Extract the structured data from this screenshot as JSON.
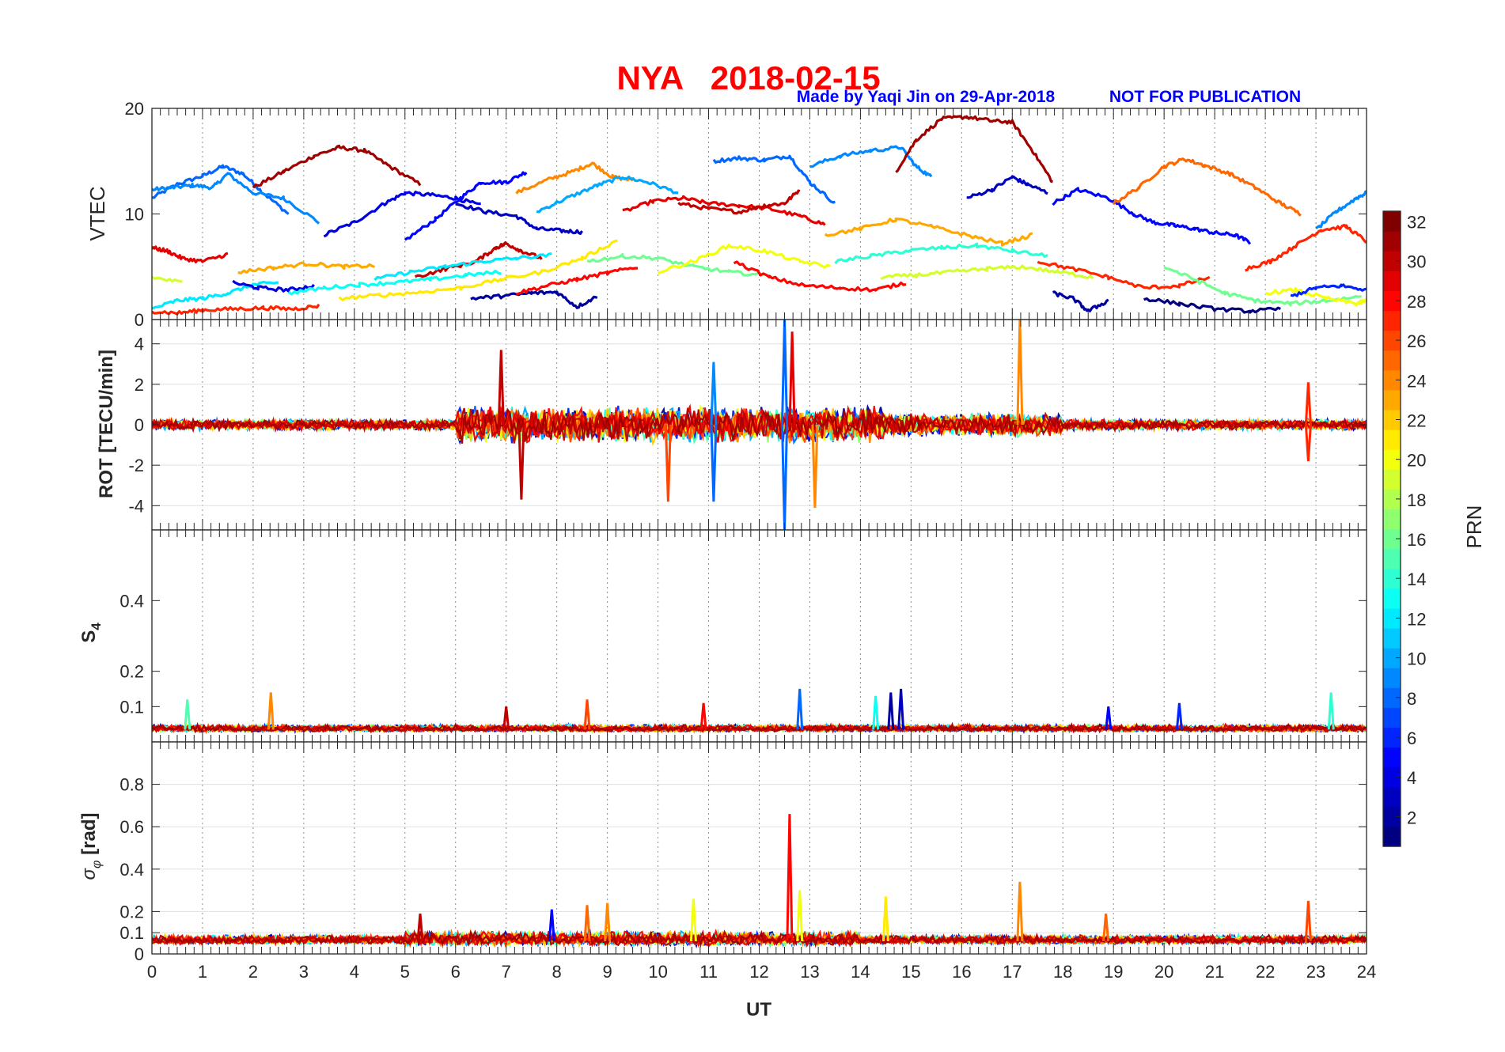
{
  "header": {
    "title": "NYA   2018-02-15",
    "credit": "Made by Yaqi Jin on 29-Apr-2018",
    "notice": "NOT FOR PUBLICATION",
    "title_color": "#ff0000",
    "credit_color": "#0000ff"
  },
  "colorbar": {
    "label": "PRN",
    "min": 1,
    "max": 32,
    "ticks": [
      "2",
      "4",
      "6",
      "8",
      "10",
      "12",
      "14",
      "16",
      "18",
      "20",
      "22",
      "24",
      "26",
      "28",
      "30",
      "32"
    ],
    "colormap": "jet"
  },
  "chart_data": [
    {
      "type": "line",
      "ylabel": "VTEC",
      "ylim": [
        0,
        20
      ],
      "yticks": [
        "0",
        "10",
        "20"
      ],
      "xlim": [
        0,
        24
      ],
      "grid": "vertical",
      "note_series": "approximate VTEC arcs per PRN (UT hours, TECU)",
      "series": [
        {
          "prn": 8,
          "x": [
            0,
            0.5,
            1,
            1.4,
            1.8,
            2.2,
            2.7
          ],
          "y": [
            11.5,
            12.8,
            13.6,
            14.5,
            13.8,
            12.0,
            10.0
          ]
        },
        {
          "prn": 9,
          "x": [
            0,
            0.4,
            0.8,
            1.2,
            1.5,
            2.0,
            2.6,
            3.3
          ],
          "y": [
            12.3,
            12.5,
            12.7,
            12.5,
            13.8,
            12.0,
            11.5,
            9.2
          ]
        },
        {
          "prn": 31,
          "x": [
            2.0,
            2.6,
            3.2,
            3.7,
            4.2,
            4.7,
            5.3
          ],
          "y": [
            12.5,
            14.0,
            15.5,
            16.3,
            16.0,
            14.5,
            12.8
          ]
        },
        {
          "prn": 4,
          "x": [
            3.4,
            4.0,
            4.6,
            5.0,
            5.5,
            6.0,
            6.5
          ],
          "y": [
            8.0,
            9.2,
            11.0,
            12.0,
            11.8,
            11.5,
            10.8
          ]
        },
        {
          "prn": 5,
          "x": [
            5.0,
            5.6,
            6.1,
            6.5,
            7.0,
            7.4
          ],
          "y": [
            7.5,
            9.5,
            11.5,
            13.0,
            13.0,
            14.0
          ]
        },
        {
          "prn": 3,
          "x": [
            6.0,
            6.6,
            7.2,
            7.6,
            8.1,
            8.5
          ],
          "y": [
            11.0,
            10.2,
            9.8,
            8.6,
            8.4,
            8.3
          ]
        },
        {
          "prn": 24,
          "x": [
            7.2,
            7.8,
            8.3,
            8.7,
            9.1,
            9.5
          ],
          "y": [
            12.0,
            13.2,
            14.0,
            14.8,
            13.5,
            13.2
          ]
        },
        {
          "prn": 10,
          "x": [
            7.6,
            8.2,
            8.8,
            9.3,
            9.8,
            10.4
          ],
          "y": [
            10.2,
            11.5,
            12.7,
            13.5,
            13.0,
            12.0
          ]
        },
        {
          "prn": 29,
          "x": [
            9.3,
            9.9,
            10.5,
            11.0,
            11.6,
            12.2,
            12.8,
            13.3
          ],
          "y": [
            10.2,
            11.2,
            11.5,
            11.0,
            10.8,
            10.5,
            9.8,
            9.0
          ]
        },
        {
          "prn": 30,
          "x": [
            10.4,
            11.0,
            11.6,
            12.1,
            12.5,
            12.8
          ],
          "y": [
            11.0,
            10.5,
            10.2,
            10.8,
            11.0,
            12.3
          ]
        },
        {
          "prn": 8,
          "x": [
            11.1,
            11.6,
            12.1,
            12.6,
            13.0,
            13.5
          ],
          "y": [
            15.0,
            15.3,
            15.1,
            15.5,
            13.0,
            11.0
          ]
        },
        {
          "prn": 9,
          "x": [
            13.0,
            13.6,
            14.2,
            14.8,
            15.1,
            15.4
          ],
          "y": [
            14.5,
            15.5,
            16.0,
            16.3,
            14.5,
            13.5
          ]
        },
        {
          "prn": 31,
          "x": [
            14.7,
            15.1,
            15.6,
            16.1,
            16.6,
            17.0,
            17.4,
            17.8
          ],
          "y": [
            14.0,
            17.0,
            19.0,
            19.2,
            18.8,
            18.7,
            16.0,
            13.0
          ]
        },
        {
          "prn": 3,
          "x": [
            16.1,
            16.6,
            17.0,
            17.3,
            17.7
          ],
          "y": [
            11.5,
            12.3,
            13.5,
            12.8,
            12.0
          ]
        },
        {
          "prn": 5,
          "x": [
            17.8,
            18.3,
            18.9,
            19.4,
            19.8,
            20.2,
            20.6,
            21.0,
            21.4,
            21.7
          ],
          "y": [
            11.0,
            12.3,
            11.5,
            10.0,
            9.2,
            8.9,
            8.6,
            8.2,
            8.0,
            7.3
          ]
        },
        {
          "prn": 25,
          "x": [
            19.0,
            19.5,
            20.0,
            20.4,
            20.8,
            21.3,
            21.8,
            22.3,
            22.7
          ],
          "y": [
            11.0,
            12.5,
            14.5,
            15.2,
            14.6,
            13.8,
            12.5,
            11.0,
            10.0
          ]
        },
        {
          "prn": 27,
          "x": [
            21.6,
            22.1,
            22.6,
            23.1,
            23.6,
            24.0
          ],
          "y": [
            4.8,
            5.5,
            7.0,
            8.5,
            8.8,
            7.4
          ]
        },
        {
          "prn": 9,
          "x": [
            23.0,
            23.4,
            23.8,
            24.0
          ],
          "y": [
            8.5,
            10.2,
            11.5,
            12.0
          ]
        },
        {
          "prn": 29,
          "x": [
            0,
            0.3,
            0.6,
            1.0,
            1.5
          ],
          "y": [
            6.8,
            6.5,
            5.8,
            5.5,
            6.2
          ]
        },
        {
          "prn": 12,
          "x": [
            0,
            0.5,
            1.0,
            1.5,
            2.0,
            2.5
          ],
          "y": [
            1.0,
            1.8,
            2.0,
            2.5,
            3.3,
            3.5
          ]
        },
        {
          "prn": 19,
          "x": [
            0,
            0.6
          ],
          "y": [
            4.0,
            3.5
          ]
        },
        {
          "prn": 27,
          "x": [
            0,
            0.5,
            1.0,
            1.6,
            2.2,
            2.8,
            3.3
          ],
          "y": [
            0.8,
            0.6,
            0.9,
            1.0,
            1.1,
            1.0,
            1.3
          ]
        },
        {
          "prn": 23,
          "x": [
            1.7,
            2.4,
            3.1,
            3.8,
            4.4
          ],
          "y": [
            4.5,
            4.9,
            5.3,
            5.0,
            5.1
          ]
        },
        {
          "prn": 4,
          "x": [
            1.6,
            2.1,
            2.7,
            3.2
          ],
          "y": [
            3.5,
            3.0,
            2.8,
            3.2
          ]
        },
        {
          "prn": 13,
          "x": [
            2.7,
            3.4,
            4.1,
            4.8,
            5.5,
            6.2,
            6.9
          ],
          "y": [
            2.5,
            3.0,
            3.3,
            3.5,
            3.8,
            4.2,
            4.5
          ]
        },
        {
          "prn": 30,
          "x": [
            5.2,
            5.8,
            6.4,
            6.8,
            7.0,
            7.3,
            7.7
          ],
          "y": [
            4.0,
            4.8,
            5.5,
            6.8,
            7.2,
            6.5,
            5.8
          ]
        },
        {
          "prn": 12,
          "x": [
            4.4,
            5.1,
            5.8,
            6.5,
            7.2,
            7.9
          ],
          "y": [
            3.8,
            4.5,
            5.0,
            5.5,
            5.8,
            6.1
          ]
        },
        {
          "prn": 21,
          "x": [
            3.7,
            4.5,
            5.3,
            6.1,
            6.9,
            7.7,
            8.5,
            9.2
          ],
          "y": [
            2.0,
            2.3,
            2.6,
            3.0,
            3.8,
            4.5,
            5.8,
            7.5
          ]
        },
        {
          "prn": 2,
          "x": [
            6.3,
            6.9,
            7.5,
            8.0,
            8.4,
            8.8
          ],
          "y": [
            2.0,
            2.2,
            2.5,
            2.6,
            1.2,
            2.2
          ]
        },
        {
          "prn": 28,
          "x": [
            7.2,
            7.8,
            8.4,
            9.0,
            9.6
          ],
          "y": [
            2.5,
            3.2,
            3.8,
            4.4,
            5.0
          ]
        },
        {
          "prn": 16,
          "x": [
            8.6,
            9.3,
            10.0,
            10.7,
            11.4,
            12.1
          ],
          "y": [
            5.5,
            6.0,
            5.8,
            5.0,
            4.5,
            4.2
          ]
        },
        {
          "prn": 20,
          "x": [
            10.0,
            10.7,
            11.4,
            12.1,
            12.8,
            13.4
          ],
          "y": [
            4.5,
            5.5,
            7.0,
            6.5,
            5.5,
            5.0
          ]
        },
        {
          "prn": 28,
          "x": [
            11.5,
            12.2,
            12.9,
            13.6,
            14.3,
            14.9
          ],
          "y": [
            5.5,
            4.0,
            3.2,
            3.0,
            2.8,
            3.5
          ]
        },
        {
          "prn": 23,
          "x": [
            13.3,
            14.0,
            14.7,
            15.4,
            16.1,
            16.8,
            17.4
          ],
          "y": [
            8.0,
            8.6,
            9.5,
            8.8,
            8.0,
            7.2,
            8.0
          ]
        },
        {
          "prn": 14,
          "x": [
            13.5,
            14.2,
            14.9,
            15.6,
            16.3,
            17.0,
            17.7
          ],
          "y": [
            5.5,
            6.0,
            6.5,
            6.8,
            7.0,
            6.5,
            6.0
          ]
        },
        {
          "prn": 19,
          "x": [
            14.4,
            15.1,
            15.8,
            16.5,
            17.2,
            17.9,
            18.6
          ],
          "y": [
            4.0,
            4.2,
            4.5,
            4.8,
            5.0,
            4.5,
            4.0
          ]
        },
        {
          "prn": 27,
          "x": [
            17.5,
            18.2,
            18.9,
            19.6,
            20.3,
            20.9
          ],
          "y": [
            5.5,
            4.8,
            4.0,
            3.0,
            3.2,
            4.0
          ]
        },
        {
          "prn": 2,
          "x": [
            17.8,
            18.2,
            18.5,
            18.9
          ],
          "y": [
            2.5,
            2.0,
            0.8,
            1.8
          ]
        },
        {
          "prn": 16,
          "x": [
            20.0,
            20.6,
            21.2,
            21.8,
            22.5,
            23.2,
            23.9
          ],
          "y": [
            5.0,
            3.8,
            2.5,
            1.8,
            1.5,
            1.8,
            2.2
          ]
        },
        {
          "prn": 1,
          "x": [
            19.6,
            20.3,
            21.0,
            21.7,
            22.3
          ],
          "y": [
            2.0,
            1.5,
            1.0,
            0.8,
            1.0
          ]
        },
        {
          "prn": 20,
          "x": [
            22.0,
            22.6,
            23.2,
            23.8,
            24.0
          ],
          "y": [
            2.5,
            2.8,
            2.0,
            1.5,
            1.8
          ]
        },
        {
          "prn": 6,
          "x": [
            22.5,
            23.0,
            23.5,
            24.0
          ],
          "y": [
            2.2,
            3.0,
            3.2,
            2.8
          ]
        }
      ]
    },
    {
      "type": "line",
      "ylabel": "ROT [TECU/min]",
      "ylim": [
        -5.2,
        5.2
      ],
      "yticks": [
        "-4",
        "-2",
        "0",
        "2",
        "4"
      ],
      "xlim": [
        0,
        24
      ],
      "grid": "both",
      "spikes": [
        {
          "x": 12.5,
          "y": 5.2,
          "prn": 8
        },
        {
          "x": 12.5,
          "y": -5.2,
          "prn": 8
        },
        {
          "x": 12.65,
          "y": 4.6,
          "prn": 29
        },
        {
          "x": 17.15,
          "y": 5.2,
          "prn": 24
        },
        {
          "x": 6.9,
          "y": 3.7,
          "prn": 30
        },
        {
          "x": 7.3,
          "y": -3.7,
          "prn": 30
        },
        {
          "x": 13.1,
          "y": -4.1,
          "prn": 24
        },
        {
          "x": 11.1,
          "y": -3.8,
          "prn": 8
        },
        {
          "x": 11.1,
          "y": 3.1,
          "prn": 9
        },
        {
          "x": 10.2,
          "y": -3.8,
          "prn": 26
        },
        {
          "x": 22.85,
          "y": 2.1,
          "prn": 27
        },
        {
          "x": 22.85,
          "y": -1.8,
          "prn": 27
        }
      ]
    },
    {
      "type": "line",
      "ylabel": "S4",
      "ylim": [
        0,
        0.6
      ],
      "yticks": [
        "0.1",
        "0.2",
        "0.4"
      ],
      "xlim": [
        0,
        24
      ],
      "grid": "vertical",
      "spikes": [
        {
          "x": 0.7,
          "y": 0.12,
          "prn": 15
        },
        {
          "x": 2.35,
          "y": 0.14,
          "prn": 24
        },
        {
          "x": 7.0,
          "y": 0.1,
          "prn": 30
        },
        {
          "x": 8.6,
          "y": 0.12,
          "prn": 26
        },
        {
          "x": 10.9,
          "y": 0.11,
          "prn": 28
        },
        {
          "x": 12.8,
          "y": 0.15,
          "prn": 8
        },
        {
          "x": 14.3,
          "y": 0.13,
          "prn": 13
        },
        {
          "x": 14.6,
          "y": 0.14,
          "prn": 2
        },
        {
          "x": 14.8,
          "y": 0.15,
          "prn": 3
        },
        {
          "x": 18.9,
          "y": 0.1,
          "prn": 5
        },
        {
          "x": 20.3,
          "y": 0.11,
          "prn": 6
        },
        {
          "x": 23.3,
          "y": 0.14,
          "prn": 14
        }
      ]
    },
    {
      "type": "line",
      "ylabel": "σφ [rad]",
      "ylim": [
        0,
        1.0
      ],
      "yticks": [
        "0",
        "0.1",
        "0.2",
        "0.4",
        "0.6",
        "0.8"
      ],
      "xticks": [
        "0",
        "1",
        "2",
        "3",
        "4",
        "5",
        "6",
        "7",
        "8",
        "9",
        "10",
        "11",
        "12",
        "13",
        "14",
        "15",
        "16",
        "17",
        "18",
        "19",
        "20",
        "21",
        "22",
        "23",
        "24"
      ],
      "xlabel": "UT",
      "xlim": [
        0,
        24
      ],
      "grid": "both",
      "spikes": [
        {
          "x": 12.6,
          "y": 0.66,
          "prn": 28
        },
        {
          "x": 17.15,
          "y": 0.34,
          "prn": 24
        },
        {
          "x": 12.8,
          "y": 0.3,
          "prn": 20
        },
        {
          "x": 10.7,
          "y": 0.26,
          "prn": 20
        },
        {
          "x": 14.5,
          "y": 0.27,
          "prn": 21
        },
        {
          "x": 22.85,
          "y": 0.25,
          "prn": 26
        },
        {
          "x": 5.3,
          "y": 0.19,
          "prn": 30
        },
        {
          "x": 18.85,
          "y": 0.19,
          "prn": 25
        },
        {
          "x": 8.6,
          "y": 0.23,
          "prn": 25
        },
        {
          "x": 9.0,
          "y": 0.24,
          "prn": 24
        },
        {
          "x": 7.9,
          "y": 0.21,
          "prn": 5
        }
      ]
    }
  ]
}
